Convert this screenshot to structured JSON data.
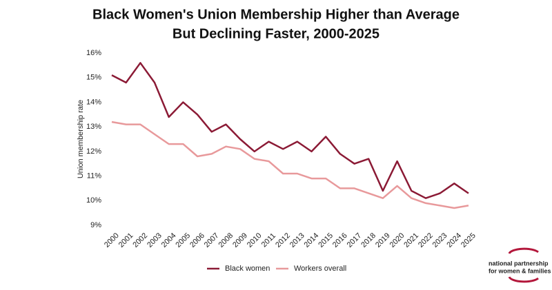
{
  "chart_data": {
    "type": "line",
    "title": [
      "Black Women's Union Membership Higher than Average",
      "But Declining Faster, 2000-2025"
    ],
    "y_label": "Union membership rate",
    "categories": [
      "2000",
      "2001",
      "2002",
      "2003",
      "2004",
      "2005",
      "2006",
      "2007",
      "2008",
      "2009",
      "2010",
      "2011",
      "2012",
      "2013",
      "2014",
      "2015",
      "2016",
      "2017",
      "2018",
      "2019",
      "2020",
      "2021",
      "2022",
      "2023",
      "2024",
      "2025"
    ],
    "series": [
      {
        "name": "Black women",
        "color": "#8b1a35",
        "values": [
          15.1,
          14.8,
          15.6,
          14.8,
          13.4,
          14.0,
          13.5,
          12.8,
          13.1,
          12.5,
          12.0,
          12.4,
          12.1,
          12.4,
          12.0,
          12.6,
          11.9,
          11.5,
          11.7,
          10.4,
          11.6,
          10.4,
          10.1,
          10.3,
          10.7,
          10.3
        ]
      },
      {
        "name": "Workers overall",
        "color": "#e8999b",
        "values": [
          13.2,
          13.1,
          13.1,
          12.7,
          12.3,
          12.3,
          11.8,
          11.9,
          12.2,
          12.1,
          11.7,
          11.6,
          11.1,
          11.1,
          10.9,
          10.9,
          10.5,
          10.5,
          10.3,
          10.1,
          10.6,
          10.1,
          9.9,
          9.8,
          9.7,
          9.8
        ]
      }
    ],
    "ylim": [
      9,
      16
    ],
    "yticks": [
      {
        "value": 9,
        "label": "9%"
      },
      {
        "value": 10,
        "label": "10%"
      },
      {
        "value": 11,
        "label": "11%"
      },
      {
        "value": 12,
        "label": "12%"
      },
      {
        "value": 13,
        "label": "13%"
      },
      {
        "value": 14,
        "label": "14%"
      },
      {
        "value": 15,
        "label": "15%"
      },
      {
        "value": 16,
        "label": "16%"
      }
    ],
    "grid": false,
    "legend": "bottom",
    "logo": [
      "national partnership",
      "for women & families"
    ]
  }
}
